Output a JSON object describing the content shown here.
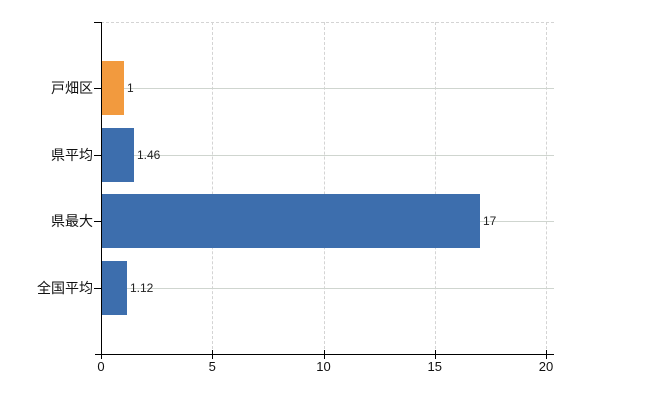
{
  "chart_data": {
    "type": "bar",
    "orientation": "horizontal",
    "title": "",
    "categories": [
      "戸畑区",
      "県平均",
      "県最大",
      "全国平均"
    ],
    "values": [
      1,
      1.46,
      17,
      1.12
    ],
    "value_labels": [
      "1",
      "1.46",
      "17",
      "1.12"
    ],
    "series_colors": [
      "#f29a3e",
      "#3d6ead",
      "#3d6ead",
      "#3d6ead"
    ],
    "x_ticks": [
      "0",
      "5",
      "10",
      "15",
      "20"
    ],
    "x_tick_values": [
      0,
      5,
      10,
      15,
      20
    ],
    "xlim": [
      0,
      20
    ],
    "grid": "vertical dashed + horizontal solid row lines + dashed top border",
    "legend": false,
    "background": "#ffffff",
    "axis_color": "#000000",
    "gridline_color": "#d4d4d4",
    "row_gridline_color": "#cfd5cf",
    "text_color": "#111111"
  }
}
